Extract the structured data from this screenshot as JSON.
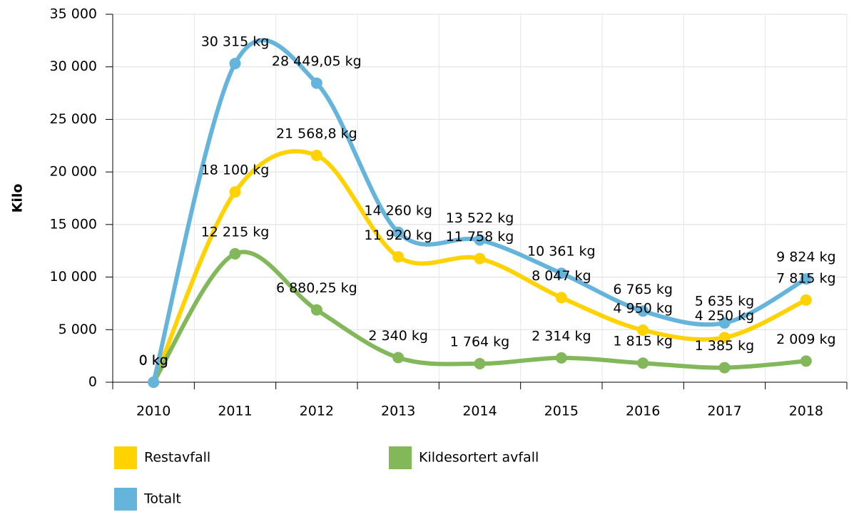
{
  "chart_data": {
    "type": "line",
    "y_label": "Kilo",
    "categories": [
      "2010",
      "2011",
      "2012",
      "2013",
      "2014",
      "2015",
      "2016",
      "2017",
      "2018"
    ],
    "series": [
      {
        "name": "Restavfall",
        "color": "#ffd200",
        "values": [
          0,
          18100,
          21568.8,
          11920,
          11758,
          8047,
          4950,
          4250,
          7815
        ],
        "value_labels": [
          "0 kg",
          "18 100 kg",
          "21 568,8 kg",
          "11 920 kg",
          "11 758 kg",
          "8 047 kg",
          "4 950 kg",
          "4 250 kg",
          "7 815 kg"
        ]
      },
      {
        "name": "Kildesortert avfall",
        "color": "#82b75a",
        "values": [
          0,
          12215,
          6880.25,
          2340,
          1764,
          2314,
          1815,
          1385,
          2009
        ],
        "value_labels": [
          "0 kg",
          "12 215 kg",
          "6 880,25 kg",
          "2 340 kg",
          "1 764 kg",
          "2 314 kg",
          "1 815 kg",
          "1 385 kg",
          "2 009 kg"
        ]
      },
      {
        "name": "Totalt",
        "color": "#64b4dc",
        "values": [
          0,
          30315,
          28449.05,
          14260,
          13522,
          10361,
          6765,
          5635,
          9824
        ],
        "value_labels": [
          "0 kg",
          "30 315 kg",
          "28 449,05 kg",
          "14 260 kg",
          "13 522 kg",
          "10 361 kg",
          "6 765 kg",
          "5 635 kg",
          "9 824 kg"
        ]
      }
    ],
    "ylim": [
      0,
      35000
    ],
    "yticks": [
      0,
      {
        "value": 5000,
        "label": "5 000"
      },
      {
        "value": 10000,
        "label": "10 000"
      },
      {
        "value": 15000,
        "label": "15 000"
      },
      {
        "value": 20000,
        "label": "20 000"
      },
      {
        "value": 25000,
        "label": "25 000"
      },
      {
        "value": 30000,
        "label": "30 000"
      },
      {
        "value": 35000,
        "label": "35 000"
      }
    ],
    "grid": true
  }
}
